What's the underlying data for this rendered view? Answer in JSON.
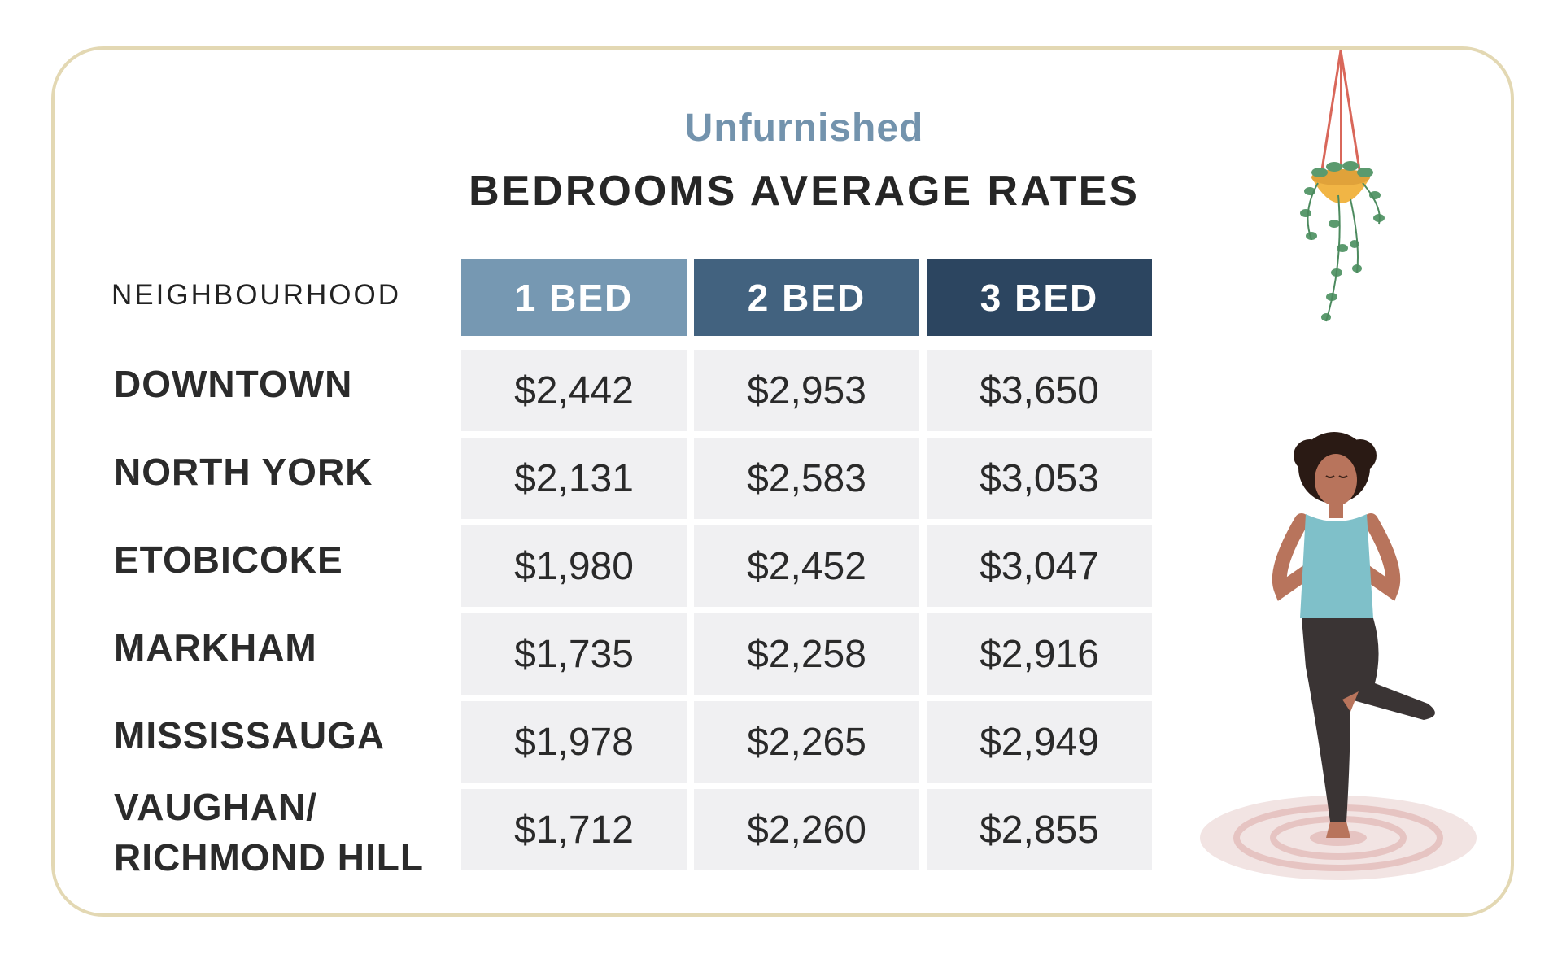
{
  "header": {
    "subtitle": "Unfurnished",
    "title": "BEDROOMS AVERAGE RATES"
  },
  "colors": {
    "col1": "#7698b2",
    "col2": "#42627f",
    "col3": "#2c4560",
    "border": "#e3d8b3",
    "cell_bg": "#f0f0f2"
  },
  "chart_data": {
    "type": "table",
    "row_header": "NEIGHBOURHOOD",
    "columns": [
      "1 BED",
      "2 BED",
      "3 BED"
    ],
    "rows": [
      {
        "label": "DOWNTOWN",
        "values": [
          "$2,442",
          "$2,953",
          "$3,650"
        ]
      },
      {
        "label": "NORTH YORK",
        "values": [
          "$2,131",
          "$2,583",
          "$3,053"
        ]
      },
      {
        "label": "ETOBICOKE",
        "values": [
          "$1,980",
          "$2,452",
          "$3,047"
        ]
      },
      {
        "label": "MARKHAM",
        "values": [
          "$1,735",
          "$2,258",
          "$2,916"
        ]
      },
      {
        "label": "MISSISSAUGA",
        "values": [
          "$1,978",
          "$2,265",
          "$2,949"
        ]
      },
      {
        "label": "VAUGHAN/\nRICHMOND HILL",
        "values": [
          "$1,712",
          "$2,260",
          "$2,855"
        ]
      }
    ]
  },
  "illustrations": [
    "hanging-plant-icon",
    "yoga-woman-icon"
  ]
}
